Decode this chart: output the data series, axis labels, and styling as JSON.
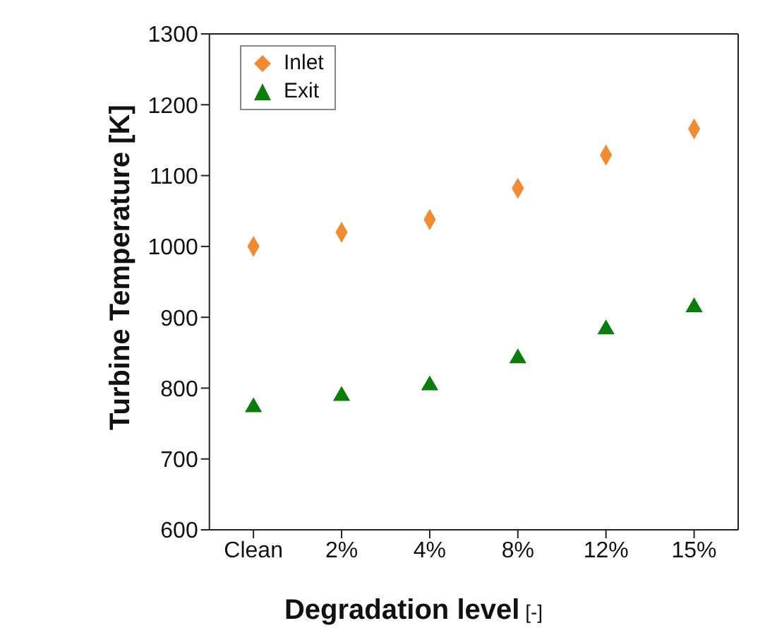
{
  "chart_data": {
    "type": "scatter",
    "xlabel": "Degradation level [-]",
    "ylabel": "Turbine Temperature [K]",
    "categories": [
      "Clean",
      "2%",
      "4%",
      "8%",
      "12%",
      "15%"
    ],
    "series": [
      {
        "name": "Inlet",
        "color": "#f28b30",
        "marker": "diamond",
        "values": [
          1000,
          1020,
          1038,
          1082,
          1129,
          1166
        ]
      },
      {
        "name": "Exit",
        "color": "#0a7d0a",
        "marker": "triangle",
        "values": [
          773,
          789,
          804,
          842,
          883,
          914
        ]
      }
    ],
    "ylim": [
      600,
      1300
    ],
    "yticks": [
      600,
      700,
      800,
      900,
      1000,
      1100,
      1200,
      1300
    ],
    "grid": false,
    "legend": "top left"
  }
}
